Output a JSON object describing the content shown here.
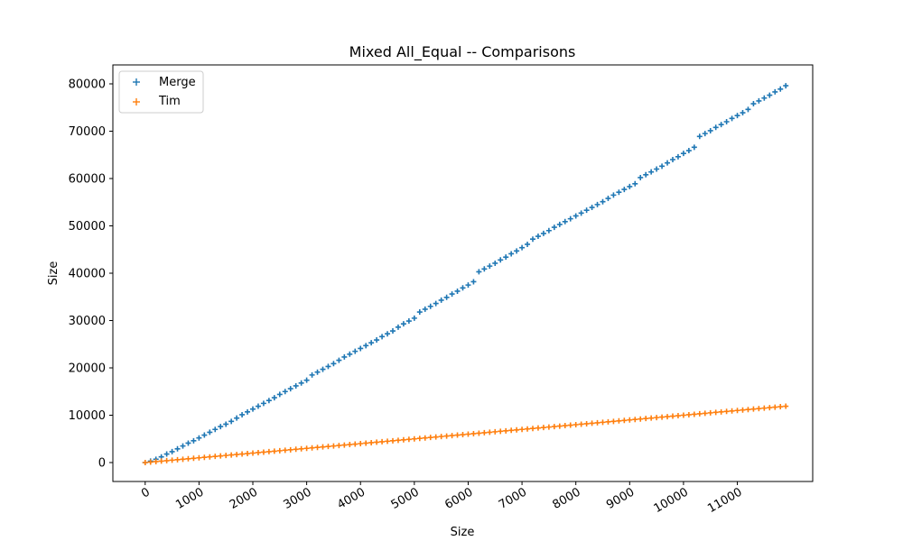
{
  "chart_data": {
    "type": "scatter",
    "title": "Mixed All_Equal -- Comparisons",
    "xlabel": "Size",
    "ylabel": "Size",
    "xlim": [
      -600,
      12400
    ],
    "ylim": [
      -4000,
      84000
    ],
    "x_ticks": [
      0,
      1000,
      2000,
      3000,
      4000,
      5000,
      6000,
      7000,
      8000,
      9000,
      10000,
      11000
    ],
    "x_tick_labels": [
      "0",
      "1000",
      "2000",
      "3000",
      "4000",
      "5000",
      "6000",
      "7000",
      "8000",
      "9000",
      "10000",
      "11000"
    ],
    "y_ticks": [
      0,
      10000,
      20000,
      30000,
      40000,
      50000,
      60000,
      70000,
      80000
    ],
    "y_tick_labels": [
      "0",
      "10000",
      "20000",
      "30000",
      "40000",
      "50000",
      "60000",
      "70000",
      "80000"
    ],
    "grid": false,
    "legend_position": "upper-left",
    "series": [
      {
        "name": "Merge",
        "color": "#1f77b4",
        "marker": "+",
        "x": [
          0,
          100,
          200,
          300,
          400,
          500,
          600,
          700,
          800,
          900,
          1000,
          1100,
          1200,
          1300,
          1400,
          1500,
          1600,
          1700,
          1800,
          1900,
          2000,
          2100,
          2200,
          2300,
          2400,
          2500,
          2600,
          2700,
          2800,
          2900,
          3000,
          3100,
          3200,
          3300,
          3400,
          3500,
          3600,
          3700,
          3800,
          3900,
          4000,
          4100,
          4200,
          4300,
          4400,
          4500,
          4600,
          4700,
          4800,
          4900,
          5000,
          5100,
          5200,
          5300,
          5400,
          5500,
          5600,
          5700,
          5800,
          5900,
          6000,
          6100,
          6200,
          6300,
          6400,
          6500,
          6600,
          6700,
          6800,
          6900,
          7000,
          7100,
          7200,
          7300,
          7400,
          7500,
          7600,
          7700,
          7800,
          7900,
          8000,
          8100,
          8200,
          8300,
          8400,
          8500,
          8600,
          8700,
          8800,
          8900,
          9000,
          9100,
          9200,
          9300,
          9400,
          9500,
          9600,
          9700,
          9800,
          9900,
          10000,
          10100,
          10200,
          10300,
          10400,
          10500,
          10600,
          10700,
          10800,
          10900,
          11000,
          11100,
          11200,
          11300,
          11400,
          11500,
          11600,
          11700,
          11800,
          11900
        ],
        "y": [
          0,
          300,
          700,
          1200,
          1800,
          2300,
          2900,
          3500,
          4100,
          4600,
          5200,
          5800,
          6400,
          7000,
          7600,
          8100,
          8700,
          9400,
          10100,
          10700,
          11300,
          11900,
          12500,
          13100,
          13700,
          14400,
          15000,
          15600,
          16200,
          16800,
          17400,
          18500,
          19100,
          19700,
          20300,
          20900,
          21600,
          22300,
          22900,
          23500,
          24100,
          24700,
          25300,
          25900,
          26600,
          27200,
          27800,
          28600,
          29300,
          29900,
          30500,
          31800,
          32400,
          33000,
          33600,
          34300,
          34900,
          35600,
          36200,
          36900,
          37500,
          38200,
          40300,
          40900,
          41500,
          42100,
          42800,
          43400,
          44100,
          44700,
          45400,
          46100,
          47200,
          47800,
          48400,
          49000,
          49700,
          50300,
          50900,
          51500,
          52100,
          52700,
          53300,
          53900,
          54500,
          55100,
          55800,
          56500,
          57100,
          57700,
          58300,
          58900,
          60200,
          60800,
          61400,
          62000,
          62600,
          63300,
          64000,
          64600,
          65300,
          65900,
          66600,
          68900,
          69500,
          70100,
          70800,
          71400,
          72000,
          72700,
          73300,
          73900,
          74600,
          75800,
          76400,
          77000,
          77600,
          78300,
          78900,
          79600
        ]
      },
      {
        "name": "Tim",
        "color": "#ff7f0e",
        "marker": "+",
        "x": [
          0,
          100,
          200,
          300,
          400,
          500,
          600,
          700,
          800,
          900,
          1000,
          1100,
          1200,
          1300,
          1400,
          1500,
          1600,
          1700,
          1800,
          1900,
          2000,
          2100,
          2200,
          2300,
          2400,
          2500,
          2600,
          2700,
          2800,
          2900,
          3000,
          3100,
          3200,
          3300,
          3400,
          3500,
          3600,
          3700,
          3800,
          3900,
          4000,
          4100,
          4200,
          4300,
          4400,
          4500,
          4600,
          4700,
          4800,
          4900,
          5000,
          5100,
          5200,
          5300,
          5400,
          5500,
          5600,
          5700,
          5800,
          5900,
          6000,
          6100,
          6200,
          6300,
          6400,
          6500,
          6600,
          6700,
          6800,
          6900,
          7000,
          7100,
          7200,
          7300,
          7400,
          7500,
          7600,
          7700,
          7800,
          7900,
          8000,
          8100,
          8200,
          8300,
          8400,
          8500,
          8600,
          8700,
          8800,
          8900,
          9000,
          9100,
          9200,
          9300,
          9400,
          9500,
          9600,
          9700,
          9800,
          9900,
          10000,
          10100,
          10200,
          10300,
          10400,
          10500,
          10600,
          10700,
          10800,
          10900,
          11000,
          11100,
          11200,
          11300,
          11400,
          11500,
          11600,
          11700,
          11800,
          11900
        ],
        "y": [
          0,
          100,
          200,
          300,
          400,
          500,
          600,
          700,
          800,
          900,
          1000,
          1100,
          1200,
          1300,
          1400,
          1500,
          1600,
          1700,
          1800,
          1900,
          2000,
          2100,
          2200,
          2300,
          2400,
          2500,
          2600,
          2700,
          2800,
          2900,
          3000,
          3100,
          3200,
          3300,
          3400,
          3500,
          3600,
          3700,
          3800,
          3900,
          4000,
          4100,
          4200,
          4300,
          4400,
          4500,
          4600,
          4700,
          4800,
          4900,
          5000,
          5100,
          5200,
          5300,
          5400,
          5500,
          5600,
          5700,
          5800,
          5900,
          6000,
          6100,
          6200,
          6300,
          6400,
          6500,
          6600,
          6700,
          6800,
          6900,
          7000,
          7100,
          7200,
          7300,
          7400,
          7500,
          7600,
          7700,
          7800,
          7900,
          8000,
          8100,
          8200,
          8300,
          8400,
          8500,
          8600,
          8700,
          8800,
          8900,
          9000,
          9100,
          9200,
          9300,
          9400,
          9500,
          9600,
          9700,
          9800,
          9900,
          10000,
          10100,
          10200,
          10300,
          10400,
          10500,
          10600,
          10700,
          10800,
          10900,
          11000,
          11100,
          11200,
          11300,
          11400,
          11500,
          11600,
          11700,
          11800,
          11900
        ]
      }
    ]
  }
}
